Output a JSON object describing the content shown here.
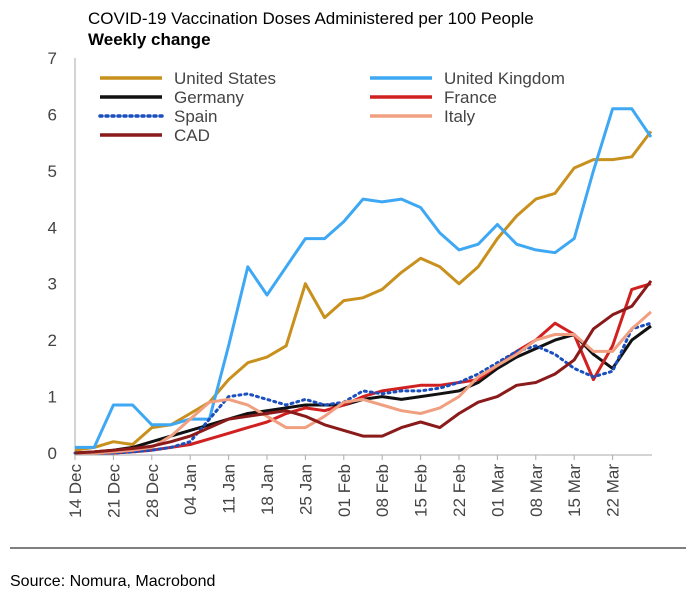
{
  "chart_data": {
    "type": "line",
    "title": "COVID-19 Vaccination Doses Administered per 100 People",
    "subtitle": "Weekly change",
    "source": "Source: Nomura, Macrobond",
    "categories": [
      "14 Dec",
      null,
      "21 Dec",
      null,
      "28 Dec",
      null,
      "04 Jan",
      null,
      "11 Jan",
      null,
      "18 Jan",
      null,
      "25 Jan",
      null,
      "01 Feb",
      null,
      "08 Feb",
      null,
      "15 Feb",
      null,
      "22 Feb",
      null,
      "01 Mar",
      null,
      "08 Mar",
      null,
      "15 Mar",
      null,
      "22 Mar",
      null,
      null
    ],
    "ylim": [
      0,
      7
    ],
    "yticks": [
      0,
      1,
      2,
      3,
      4,
      5,
      6,
      7
    ],
    "grid": false,
    "series": [
      {
        "name": "United States",
        "color": "#c8901c",
        "style": "solid",
        "values": [
          0.05,
          0.1,
          0.2,
          0.15,
          0.45,
          0.5,
          0.7,
          0.9,
          1.3,
          1.6,
          1.7,
          1.9,
          3.0,
          2.4,
          2.7,
          2.75,
          2.9,
          3.2,
          3.45,
          3.3,
          3.0,
          3.3,
          3.8,
          4.2,
          4.5,
          4.6,
          5.05,
          5.2,
          5.2,
          5.25,
          5.7
        ]
      },
      {
        "name": "United Kingdom",
        "color": "#3fa8f4",
        "style": "solid",
        "values": [
          0.1,
          0.1,
          0.85,
          0.85,
          0.5,
          0.5,
          0.6,
          0.6,
          1.9,
          3.3,
          2.8,
          3.3,
          3.8,
          3.8,
          4.1,
          4.5,
          4.45,
          4.5,
          4.35,
          3.9,
          3.6,
          3.7,
          4.05,
          3.7,
          3.6,
          3.55,
          3.8,
          5.0,
          6.1,
          6.1,
          5.6
        ]
      },
      {
        "name": "Germany",
        "color": "#111111",
        "style": "solid",
        "values": [
          0,
          0.02,
          0.05,
          0.1,
          0.2,
          0.3,
          0.4,
          0.5,
          0.6,
          0.7,
          0.75,
          0.8,
          0.85,
          0.85,
          0.85,
          0.95,
          1.0,
          0.95,
          1.0,
          1.05,
          1.1,
          1.25,
          1.5,
          1.7,
          1.85,
          2.0,
          2.1,
          1.75,
          1.5,
          2.0,
          2.25
        ]
      },
      {
        "name": "France",
        "color": "#d02020",
        "style": "solid",
        "values": [
          0,
          0,
          0,
          0.02,
          0.05,
          0.1,
          0.15,
          0.25,
          0.35,
          0.45,
          0.55,
          0.7,
          0.8,
          0.75,
          0.85,
          1.0,
          1.1,
          1.15,
          1.2,
          1.2,
          1.25,
          1.3,
          1.55,
          1.8,
          2.0,
          2.3,
          2.1,
          1.3,
          1.9,
          2.9,
          3.0
        ]
      },
      {
        "name": "Spain",
        "color": "#1a4fc0",
        "style": "dotted",
        "values": [
          0,
          0,
          0,
          0.02,
          0.05,
          0.1,
          0.2,
          0.6,
          1.0,
          1.05,
          0.95,
          0.85,
          0.95,
          0.85,
          0.9,
          1.1,
          1.05,
          1.1,
          1.1,
          1.15,
          1.25,
          1.4,
          1.6,
          1.8,
          1.9,
          1.75,
          1.5,
          1.35,
          1.45,
          2.2,
          2.3
        ]
      },
      {
        "name": "Italy",
        "color": "#f0a080",
        "style": "solid",
        "values": [
          0,
          0,
          0.02,
          0.05,
          0.1,
          0.3,
          0.6,
          0.9,
          0.95,
          0.85,
          0.65,
          0.45,
          0.45,
          0.65,
          0.9,
          0.95,
          0.85,
          0.75,
          0.7,
          0.8,
          1.0,
          1.35,
          1.55,
          1.75,
          2.0,
          2.1,
          2.1,
          1.8,
          1.8,
          2.2,
          2.5
        ]
      },
      {
        "name": "CAD",
        "color": "#8b1a1a",
        "style": "solid",
        "values": [
          0,
          0.02,
          0.05,
          0.08,
          0.12,
          0.2,
          0.3,
          0.45,
          0.6,
          0.65,
          0.7,
          0.75,
          0.65,
          0.5,
          0.4,
          0.3,
          0.3,
          0.45,
          0.55,
          0.45,
          0.7,
          0.9,
          1.0,
          1.2,
          1.25,
          1.4,
          1.65,
          2.2,
          2.45,
          2.6,
          3.05
        ]
      }
    ]
  }
}
